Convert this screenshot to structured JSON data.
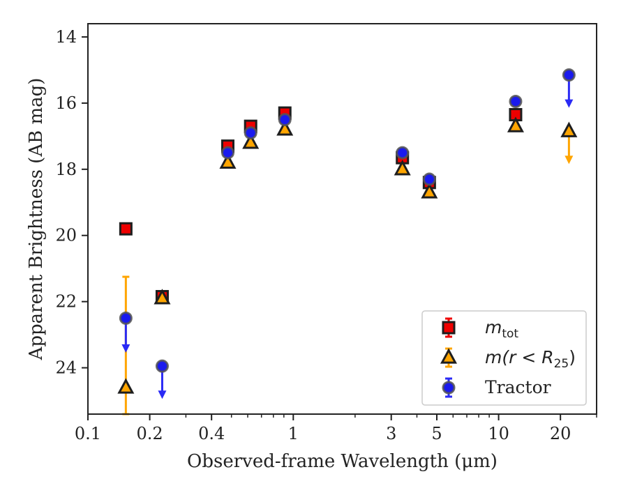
{
  "chart_data": {
    "type": "scatter",
    "xlabel": "Observed-frame Wavelength (μm)",
    "ylabel": "Apparent Brightness (AB mag)",
    "x_scale": "log",
    "xlim": [
      0.1,
      30
    ],
    "ylim": [
      25.4,
      13.6
    ],
    "y_inverted": true,
    "x_ticks": [
      {
        "value": 0.1,
        "label": "0.1"
      },
      {
        "value": 0.2,
        "label": "0.2"
      },
      {
        "value": 0.4,
        "label": "0.4"
      },
      {
        "value": 1,
        "label": "1"
      },
      {
        "value": 3,
        "label": "3"
      },
      {
        "value": 5,
        "label": "5"
      },
      {
        "value": 10,
        "label": "10"
      },
      {
        "value": 20,
        "label": "20"
      }
    ],
    "y_ticks": [
      {
        "value": 14,
        "label": "14"
      },
      {
        "value": 16,
        "label": "16"
      },
      {
        "value": 18,
        "label": "18"
      },
      {
        "value": 20,
        "label": "20"
      },
      {
        "value": 22,
        "label": "22"
      },
      {
        "value": 24,
        "label": "24"
      }
    ],
    "grid": false,
    "legend_position": "bottom-right",
    "series": [
      {
        "name": "m_tot",
        "legend_label": {
          "base": "m",
          "sub": "tot"
        },
        "marker": "square",
        "color": "#ee0000",
        "errorbar_color": "#ee0000",
        "points": [
          {
            "x": 0.153,
            "y": 19.8,
            "yerr": 0.05
          },
          {
            "x": 0.23,
            "y": 21.85,
            "yerr": 0.05
          },
          {
            "x": 0.48,
            "y": 17.3,
            "yerr": 0.05
          },
          {
            "x": 0.62,
            "y": 16.7,
            "yerr": 0.05
          },
          {
            "x": 0.91,
            "y": 16.3,
            "yerr": 0.05
          },
          {
            "x": 3.4,
            "y": 17.65,
            "yerr": 0.05
          },
          {
            "x": 4.6,
            "y": 18.4,
            "yerr": 0.05
          },
          {
            "x": 12.1,
            "y": 16.35,
            "yerr": 0.05
          }
        ]
      },
      {
        "name": "m(r<R25)",
        "legend_label": {
          "base": "m(r < R",
          "sub": "25",
          "tail": ")"
        },
        "marker": "triangle",
        "color": "#ffa500",
        "errorbar_color": "#ffa500",
        "points": [
          {
            "x": 0.153,
            "y": 24.6,
            "yerr_low": 3.35,
            "yerr_high": 0.8
          },
          {
            "x": 0.23,
            "y": 21.9,
            "yerr": 0.05
          },
          {
            "x": 0.48,
            "y": 17.8,
            "yerr": 0.05
          },
          {
            "x": 0.62,
            "y": 17.2,
            "yerr": 0.05
          },
          {
            "x": 0.91,
            "y": 16.8,
            "yerr": 0.05
          },
          {
            "x": 3.4,
            "y": 18.0,
            "yerr": 0.05
          },
          {
            "x": 4.6,
            "y": 18.7,
            "yerr": 0.05
          },
          {
            "x": 12.1,
            "y": 16.7,
            "yerr": 0.05
          },
          {
            "x": 22,
            "y": 16.85,
            "upper_limit": true,
            "arrow_to": 17.8
          }
        ]
      },
      {
        "name": "Tractor",
        "legend_label": {
          "base": "Tractor"
        },
        "marker": "circle",
        "color": "#1a1aee",
        "errorbar_color": "#2a2af5",
        "points": [
          {
            "x": 0.153,
            "y": 22.5,
            "upper_limit": true,
            "arrow_to": 23.5
          },
          {
            "x": 0.23,
            "y": 23.95,
            "upper_limit": true,
            "arrow_to": 24.9
          },
          {
            "x": 0.48,
            "y": 17.5,
            "yerr": 0.05
          },
          {
            "x": 0.62,
            "y": 16.9,
            "yerr": 0.05
          },
          {
            "x": 0.91,
            "y": 16.5,
            "yerr": 0.05
          },
          {
            "x": 3.4,
            "y": 17.5,
            "yerr": 0.05
          },
          {
            "x": 4.6,
            "y": 18.3,
            "yerr": 0.05
          },
          {
            "x": 12.1,
            "y": 15.95,
            "yerr": 0.05
          },
          {
            "x": 22,
            "y": 15.15,
            "upper_limit": true,
            "arrow_to": 16.1
          }
        ]
      }
    ]
  }
}
